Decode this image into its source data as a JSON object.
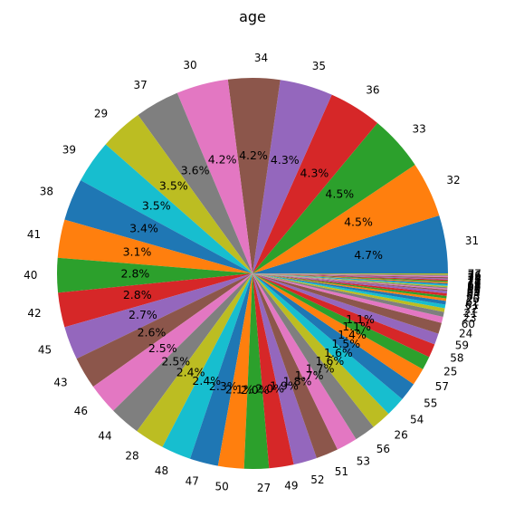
{
  "chart_data": {
    "type": "pie",
    "title": "age",
    "autopct_min_shown": 1.0,
    "start_angle_deg": 0,
    "direction": "counterclockwise",
    "colors": [
      "#1f77b4",
      "#ff7f0e",
      "#2ca02c",
      "#d62728",
      "#9467bd",
      "#8c564b",
      "#e377c2",
      "#7f7f7f",
      "#bcbd22",
      "#17becf"
    ],
    "slices": [
      {
        "label": "31",
        "value": 4.7
      },
      {
        "label": "32",
        "value": 4.5
      },
      {
        "label": "33",
        "value": 4.5
      },
      {
        "label": "36",
        "value": 4.3
      },
      {
        "label": "35",
        "value": 4.3
      },
      {
        "label": "34",
        "value": 4.2
      },
      {
        "label": "30",
        "value": 4.2
      },
      {
        "label": "37",
        "value": 3.6
      },
      {
        "label": "29",
        "value": 3.5
      },
      {
        "label": "39",
        "value": 3.5
      },
      {
        "label": "38",
        "value": 3.4
      },
      {
        "label": "41",
        "value": 3.1
      },
      {
        "label": "40",
        "value": 2.8
      },
      {
        "label": "42",
        "value": 2.8
      },
      {
        "label": "45",
        "value": 2.7
      },
      {
        "label": "43",
        "value": 2.6
      },
      {
        "label": "46",
        "value": 2.5
      },
      {
        "label": "44",
        "value": 2.5
      },
      {
        "label": "28",
        "value": 2.4
      },
      {
        "label": "48",
        "value": 2.4
      },
      {
        "label": "47",
        "value": 2.3
      },
      {
        "label": "50",
        "value": 2.1
      },
      {
        "label": "27",
        "value": 2.0
      },
      {
        "label": "49",
        "value": 2.0
      },
      {
        "label": "52",
        "value": 1.9
      },
      {
        "label": "51",
        "value": 1.8
      },
      {
        "label": "53",
        "value": 1.7
      },
      {
        "label": "56",
        "value": 1.7
      },
      {
        "label": "26",
        "value": 1.6
      },
      {
        "label": "54",
        "value": 1.6
      },
      {
        "label": "55",
        "value": 1.5
      },
      {
        "label": "57",
        "value": 1.4
      },
      {
        "label": "25",
        "value": 1.1
      },
      {
        "label": "58",
        "value": 1.1
      },
      {
        "label": "59",
        "value": 0.9
      },
      {
        "label": "24",
        "value": 0.9
      },
      {
        "label": "60",
        "value": 0.5
      },
      {
        "label": "23",
        "value": 0.4
      },
      {
        "label": "21",
        "value": 0.3
      },
      {
        "label": "22",
        "value": 0.3
      },
      {
        "label": "61",
        "value": 0.3
      },
      {
        "label": "62",
        "value": 0.2
      },
      {
        "label": "20",
        "value": 0.2
      },
      {
        "label": "63",
        "value": 0.2
      },
      {
        "label": "64",
        "value": 0.2
      },
      {
        "label": "65",
        "value": 0.1
      },
      {
        "label": "66",
        "value": 0.1
      },
      {
        "label": "19",
        "value": 0.1
      },
      {
        "label": "67",
        "value": 0.1
      },
      {
        "label": "68",
        "value": 0.1
      },
      {
        "label": "69",
        "value": 0.1
      },
      {
        "label": "70",
        "value": 0.1
      },
      {
        "label": "71",
        "value": 0.1
      },
      {
        "label": "72",
        "value": 0.1
      },
      {
        "label": "73",
        "value": 0.1
      },
      {
        "label": "74",
        "value": 0.1
      },
      {
        "label": "75",
        "value": 0.1
      },
      {
        "label": "76",
        "value": 0.1
      },
      {
        "label": "77",
        "value": 0.1
      }
    ]
  }
}
